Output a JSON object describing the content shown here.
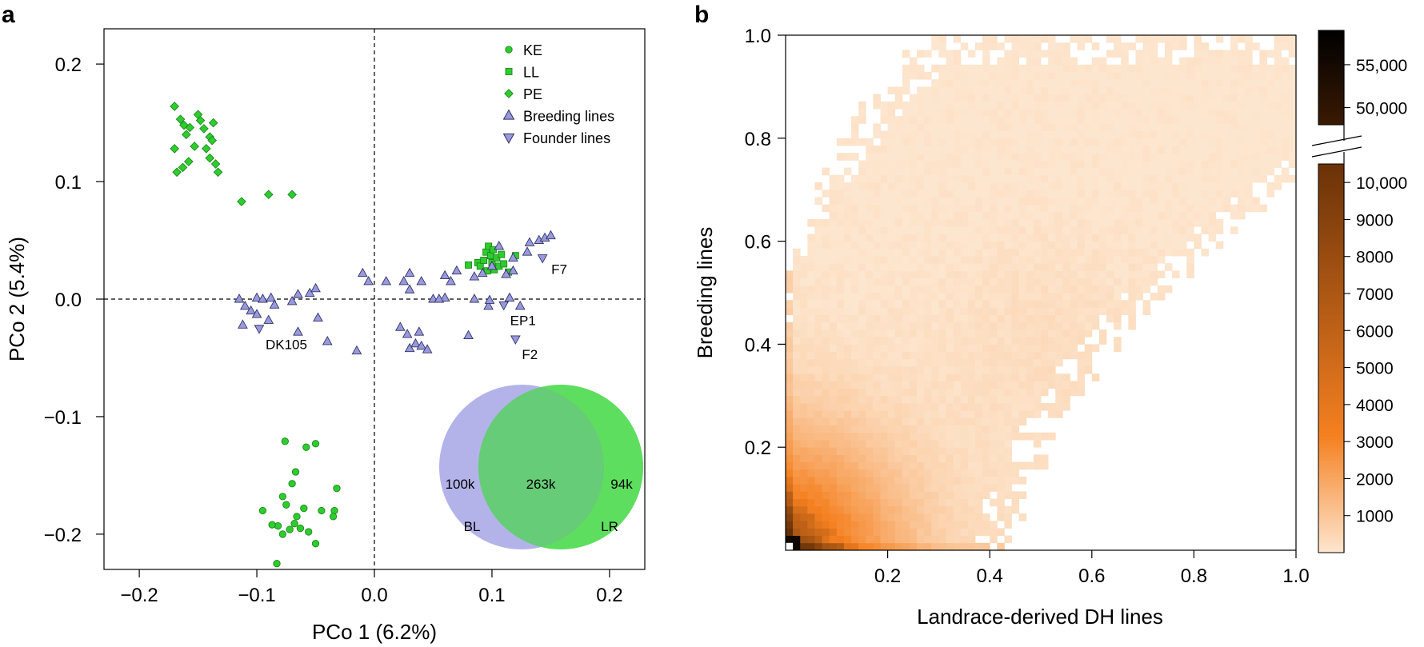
{
  "panels": {
    "a": {
      "letter": "a"
    },
    "b": {
      "letter": "b"
    }
  },
  "chart_data": [
    {
      "id": "a",
      "type": "scatter",
      "title": "",
      "xlabel": "PCo 1 (6.2%)",
      "ylabel": "PCo 2 (5.4%)",
      "xlim": [
        -0.23,
        0.23
      ],
      "ylim": [
        -0.23,
        0.23
      ],
      "xticks": [
        -0.2,
        -0.1,
        0.0,
        0.1,
        0.2
      ],
      "xtick_labels": [
        "−0.2",
        "−0.1",
        "0.0",
        "0.1",
        "0.2"
      ],
      "yticks": [
        0.2,
        0.1,
        0.0,
        -0.1,
        -0.2
      ],
      "ytick_labels": [
        "0.2",
        "0.1",
        "0.0",
        "−0.1",
        "−0.2"
      ],
      "reference_lines": {
        "x": 0,
        "y": 0,
        "style": "dashed"
      },
      "legend": {
        "position": "top-right",
        "entries": [
          {
            "label": "KE",
            "marker": "circle",
            "color": "#2fcc2f"
          },
          {
            "label": "LL",
            "marker": "square",
            "color": "#2fcc2f"
          },
          {
            "label": "PE",
            "marker": "diamond",
            "color": "#2fcc2f"
          },
          {
            "label": "Breeding lines",
            "marker": "triangle-up",
            "color": "#9999dd"
          },
          {
            "label": "Founder lines",
            "marker": "triangle-down",
            "color": "#9999dd"
          }
        ]
      },
      "series": [
        {
          "name": "KE",
          "marker": "circle",
          "points": [
            [
              -0.076,
              -0.121
            ],
            [
              -0.058,
              -0.126
            ],
            [
              -0.05,
              -0.123
            ],
            [
              -0.067,
              -0.147
            ],
            [
              -0.07,
              -0.157
            ],
            [
              -0.095,
              -0.18
            ],
            [
              -0.078,
              -0.168
            ],
            [
              -0.075,
              -0.175
            ],
            [
              -0.066,
              -0.185
            ],
            [
              -0.06,
              -0.178
            ],
            [
              -0.045,
              -0.18
            ],
            [
              -0.032,
              -0.161
            ],
            [
              -0.082,
              -0.193
            ],
            [
              -0.078,
              -0.2
            ],
            [
              -0.072,
              -0.196
            ],
            [
              -0.068,
              -0.191
            ],
            [
              -0.063,
              -0.195
            ],
            [
              -0.056,
              -0.198
            ],
            [
              -0.034,
              -0.18
            ],
            [
              -0.035,
              -0.185
            ],
            [
              -0.05,
              -0.208
            ],
            [
              -0.083,
              -0.225
            ],
            [
              -0.087,
              -0.192
            ]
          ]
        },
        {
          "name": "LL",
          "marker": "square",
          "points": [
            [
              0.08,
              0.029
            ],
            [
              0.088,
              0.031
            ],
            [
              0.09,
              0.028
            ],
            [
              0.093,
              0.033
            ],
            [
              0.095,
              0.04
            ],
            [
              0.097,
              0.045
            ],
            [
              0.099,
              0.037
            ],
            [
              0.1,
              0.031
            ],
            [
              0.102,
              0.025
            ],
            [
              0.104,
              0.035
            ],
            [
              0.106,
              0.028
            ],
            [
              0.11,
              0.03
            ],
            [
              0.114,
              0.023
            ],
            [
              0.12,
              0.037
            ],
            [
              0.096,
              0.024
            ],
            [
              0.101,
              0.042
            ],
            [
              0.108,
              0.038
            ]
          ]
        },
        {
          "name": "PE",
          "marker": "diamond",
          "points": [
            [
              -0.17,
              0.164
            ],
            [
              -0.165,
              0.153
            ],
            [
              -0.16,
              0.14
            ],
            [
              -0.157,
              0.146
            ],
            [
              -0.15,
              0.157
            ],
            [
              -0.148,
              0.152
            ],
            [
              -0.153,
              0.13
            ],
            [
              -0.145,
              0.145
            ],
            [
              -0.14,
              0.138
            ],
            [
              -0.137,
              0.15
            ],
            [
              -0.138,
              0.135
            ],
            [
              -0.143,
              0.128
            ],
            [
              -0.14,
              0.12
            ],
            [
              -0.135,
              0.115
            ],
            [
              -0.133,
              0.108
            ],
            [
              -0.158,
              0.117
            ],
            [
              -0.163,
              0.112
            ],
            [
              -0.168,
              0.108
            ],
            [
              -0.17,
              0.128
            ],
            [
              -0.113,
              0.083
            ],
            [
              -0.09,
              0.089
            ],
            [
              -0.07,
              0.089
            ],
            [
              -0.162,
              0.148
            ]
          ]
        },
        {
          "name": "Breeding lines",
          "marker": "triangle-up",
          "points": [
            [
              -0.115,
              0.0
            ],
            [
              -0.1,
              0.001
            ],
            [
              -0.095,
              0.0
            ],
            [
              -0.088,
              0.001
            ],
            [
              -0.085,
              -0.005
            ],
            [
              -0.11,
              -0.006
            ],
            [
              -0.105,
              -0.01
            ],
            [
              -0.1,
              -0.013
            ],
            [
              -0.07,
              -0.002
            ],
            [
              -0.065,
              0.004
            ],
            [
              -0.055,
              0.005
            ],
            [
              -0.05,
              0.009
            ],
            [
              -0.048,
              -0.016
            ],
            [
              -0.04,
              -0.036
            ],
            [
              -0.065,
              -0.028
            ],
            [
              -0.09,
              -0.018
            ],
            [
              -0.112,
              -0.022
            ],
            [
              -0.01,
              0.022
            ],
            [
              -0.005,
              0.015
            ],
            [
              0.01,
              0.015
            ],
            [
              0.025,
              0.015
            ],
            [
              0.03,
              0.022
            ],
            [
              0.04,
              0.015
            ],
            [
              0.06,
              0.02
            ],
            [
              0.03,
              0.008
            ],
            [
              0.05,
              0.0
            ],
            [
              0.06,
              0.001
            ],
            [
              0.065,
              0.015
            ],
            [
              0.07,
              0.024
            ],
            [
              0.085,
              0.019
            ],
            [
              0.092,
              0.022
            ],
            [
              0.1,
              0.028
            ],
            [
              0.112,
              0.021
            ],
            [
              0.118,
              0.024
            ],
            [
              0.106,
              0.045
            ],
            [
              0.118,
              0.035
            ],
            [
              0.13,
              0.04
            ],
            [
              0.097,
              -0.006
            ],
            [
              0.115,
              0.001
            ],
            [
              0.124,
              -0.006
            ],
            [
              0.098,
              -0.001
            ],
            [
              0.055,
              0.0
            ],
            [
              0.085,
              0.0
            ],
            [
              0.022,
              -0.024
            ],
            [
              0.028,
              -0.03
            ],
            [
              0.038,
              -0.028
            ],
            [
              0.03,
              -0.042
            ],
            [
              0.035,
              -0.038
            ],
            [
              0.04,
              -0.04
            ],
            [
              0.045,
              -0.043
            ],
            [
              0.08,
              -0.031
            ],
            [
              -0.015,
              -0.044
            ],
            [
              0.14,
              0.05
            ],
            [
              0.145,
              0.052
            ],
            [
              0.15,
              0.054
            ],
            [
              0.132,
              0.048
            ]
          ]
        },
        {
          "name": "Founder lines",
          "marker": "triangle-down",
          "points": [
            [
              -0.098,
              -0.025
            ],
            [
              0.11,
              -0.005
            ],
            [
              0.12,
              -0.034
            ],
            [
              0.143,
              0.035
            ]
          ]
        }
      ],
      "point_labels": [
        {
          "text": "DK105",
          "x": -0.098,
          "y": -0.025
        },
        {
          "text": "EP1",
          "x": 0.11,
          "y": -0.005
        },
        {
          "text": "F2",
          "x": 0.12,
          "y": -0.034
        },
        {
          "text": "F7",
          "x": 0.143,
          "y": 0.035
        }
      ],
      "venn": {
        "sets": [
          {
            "name": "BL",
            "color": "#b3b3ea"
          },
          {
            "name": "LR",
            "color": "#5ede5e"
          }
        ],
        "counts": {
          "BL_only": "100k",
          "both": "263k",
          "LR_only": "94k"
        },
        "overlap_color": "#66cc77"
      }
    },
    {
      "id": "b",
      "type": "heatmap",
      "title": "",
      "xlabel": "Landrace-derived DH lines",
      "ylabel": "Breeding lines",
      "xlim": [
        0,
        1
      ],
      "ylim": [
        0,
        1
      ],
      "xticks": [
        0.2,
        0.4,
        0.6,
        0.8,
        1.0
      ],
      "xtick_labels": [
        "0.2",
        "0.4",
        "0.6",
        "0.8",
        "1.0"
      ],
      "yticks": [
        0.2,
        0.4,
        0.6,
        0.8,
        1.0
      ],
      "ytick_labels": [
        "0.2",
        "0.4",
        "0.6",
        "0.8",
        "1.0"
      ],
      "bins": 70,
      "colorbar": {
        "lower_ticks": [
          1000,
          2000,
          3000,
          4000,
          5000,
          6000,
          7000,
          8000,
          9000,
          10000
        ],
        "lower_labels": [
          "1000",
          "2000",
          "3000",
          "4000",
          "5000",
          "6000",
          "7000",
          "8000",
          "9000",
          "10,000"
        ],
        "lower_range": [
          0,
          10500
        ],
        "upper_ticks": [
          50000,
          55000
        ],
        "upper_labels": [
          "50,000",
          "55,000"
        ],
        "upper_range": [
          48000,
          59000
        ],
        "axis_break": true,
        "colors": [
          "#fde6cf",
          "#f58020",
          "#5a2a05",
          "#000000"
        ]
      }
    }
  ]
}
